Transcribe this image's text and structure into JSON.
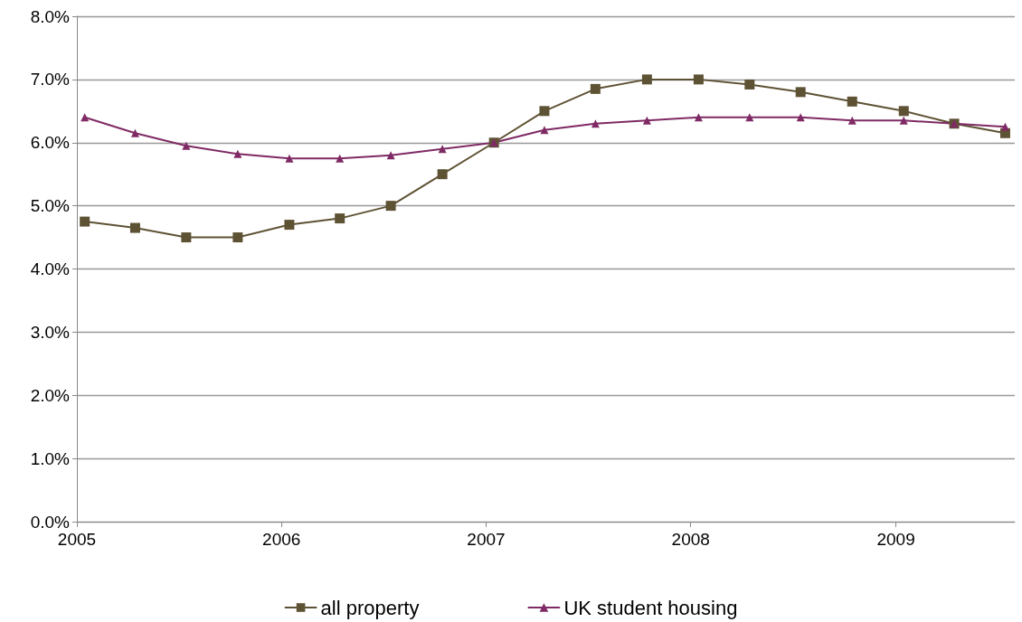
{
  "chart_data": {
    "type": "line",
    "x": [
      "2005-01-15",
      "2005-04-15",
      "2005-07-15",
      "2005-10-15",
      "2006-01-15",
      "2006-04-15",
      "2006-07-15",
      "2006-10-15",
      "2007-01-15",
      "2007-04-15",
      "2007-07-15",
      "2007-10-15",
      "2008-01-15",
      "2008-04-15",
      "2008-07-15",
      "2008-10-15",
      "2009-01-15",
      "2009-04-15",
      "2009-07-15"
    ],
    "series": [
      {
        "name": "all property",
        "color": "#5e5234",
        "marker": "square",
        "values": [
          4.75,
          4.65,
          4.5,
          4.5,
          4.7,
          4.8,
          5.0,
          5.5,
          6.0,
          6.5,
          6.85,
          7.0,
          7.0,
          6.92,
          6.8,
          6.65,
          6.5,
          6.3,
          6.15
        ]
      },
      {
        "name": "UK student housing",
        "color": "#7f2a64",
        "marker": "triangle",
        "values": [
          6.4,
          6.15,
          5.95,
          5.82,
          5.75,
          5.75,
          5.8,
          5.9,
          6.0,
          6.2,
          6.3,
          6.35,
          6.4,
          6.4,
          6.4,
          6.35,
          6.35,
          6.3,
          6.25
        ]
      }
    ],
    "xlim": [
      "2005-01-01",
      "2009-08-01"
    ],
    "xticks": [
      {
        "value": "2005-01-01",
        "label": "2005"
      },
      {
        "value": "2006-01-01",
        "label": "2006"
      },
      {
        "value": "2007-01-01",
        "label": "2007"
      },
      {
        "value": "2008-01-01",
        "label": "2008"
      },
      {
        "value": "2009-01-01",
        "label": "2009"
      }
    ],
    "ylim": [
      0,
      8
    ],
    "yticks": [
      {
        "value": 0,
        "label": "0.0%"
      },
      {
        "value": 1,
        "label": "1.0%"
      },
      {
        "value": 2,
        "label": "2.0%"
      },
      {
        "value": 3,
        "label": "3.0%"
      },
      {
        "value": 4,
        "label": "4.0%"
      },
      {
        "value": 5,
        "label": "5.0%"
      },
      {
        "value": 6,
        "label": "6.0%"
      },
      {
        "value": 7,
        "label": "7.0%"
      },
      {
        "value": 8,
        "label": "8.0%"
      }
    ],
    "grid": "y",
    "legend": "bottom",
    "line_style": "solid"
  }
}
